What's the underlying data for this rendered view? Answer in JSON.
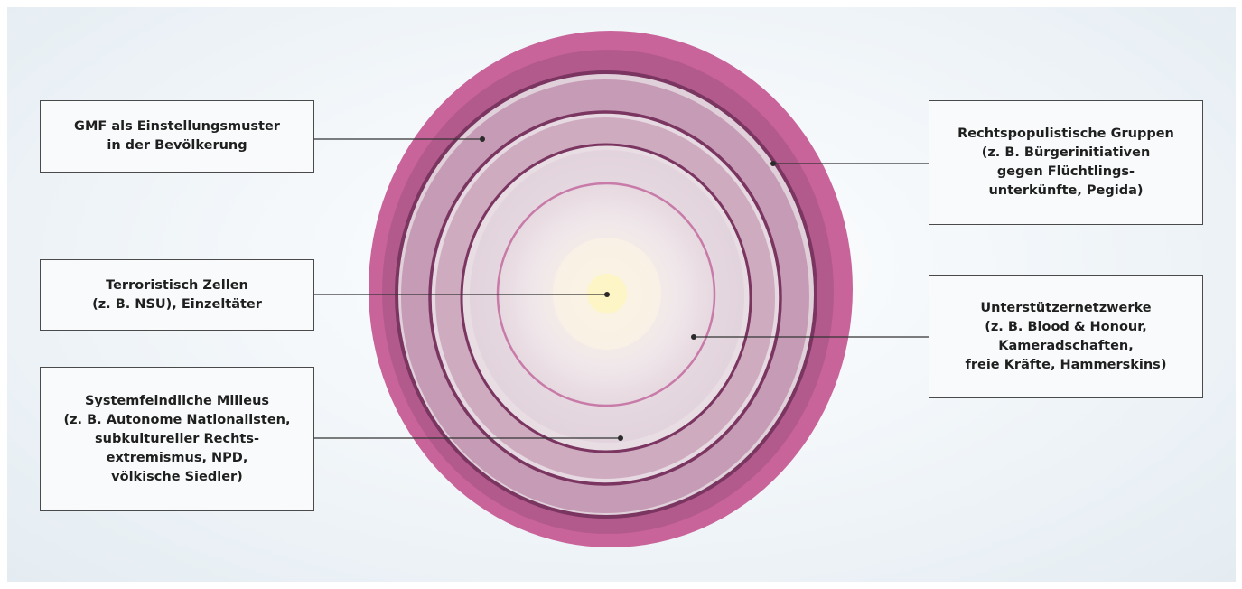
{
  "colors": {
    "outer_skin": "#c9649b",
    "ring_dark": "#7a3560",
    "ring_mid": "#a65687",
    "inner_light": "#f2ecee",
    "core": "#fbf6d8",
    "connector": "#333333",
    "box_border": "#4a4a4a",
    "box_fill": "#f8fafb"
  },
  "labels": {
    "gmf": [
      "GMF als Einstellungsmuster",
      "in der Bevölkerung"
    ],
    "terror": [
      "Terroristisch Zellen",
      "(z. B. NSU), Einzeltäter"
    ],
    "milieus": [
      "Systemfeindliche Milieus",
      "(z. B. Autonome Nationalisten,",
      "subkultureller Rechts-",
      "extremismus, NPD,",
      "völkische Siedler)"
    ],
    "populist": [
      "Rechtspopulistische Gruppen",
      "(z. B. Bürgerinitiativen",
      "gegen Flüchtlings-",
      "unterkünfte, Pegida)"
    ],
    "support": [
      "Unterstützernetzwerke",
      "(z. B. Blood & Honour,",
      "Kameradschaften,",
      "freie Kräfte, Hammerskins)"
    ]
  }
}
